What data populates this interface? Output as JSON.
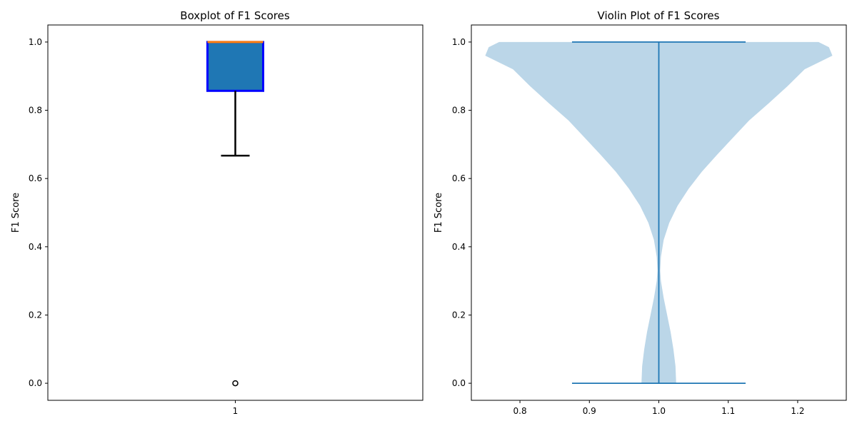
{
  "chart_data": [
    {
      "type": "boxplot",
      "title": "Boxplot of F1 Scores",
      "xlabel": "",
      "ylabel": "F1 Score",
      "categories": [
        "1"
      ],
      "ylim": [
        -0.05,
        1.05
      ],
      "yticks": [
        "0.0",
        "0.2",
        "0.4",
        "0.6",
        "0.8",
        "1.0"
      ],
      "stats": {
        "whisker_low": 0.667,
        "q1": 0.857,
        "median": 1.0,
        "q3": 1.0,
        "whisker_high": 1.0,
        "outliers": [
          0.0
        ]
      },
      "colors": {
        "box_fill": "#1f77b4",
        "box_edge": "#0000ff",
        "median": "#ff7f0e",
        "whisker": "#000000"
      }
    },
    {
      "type": "violin",
      "title": "Violin Plot of F1 Scores",
      "xlabel": "",
      "ylabel": "F1 Score",
      "position": 1.0,
      "xlim": [
        0.73,
        1.27
      ],
      "ylim": [
        -0.05,
        1.05
      ],
      "xticks": [
        "0.8",
        "0.9",
        "1.0",
        "1.1",
        "1.2"
      ],
      "yticks": [
        "0.0",
        "0.2",
        "0.4",
        "0.6",
        "0.8",
        "1.0"
      ],
      "min": 0.0,
      "max": 1.0,
      "density_profile": [
        {
          "y": 0.0,
          "w": 0.025
        },
        {
          "y": 0.05,
          "w": 0.024
        },
        {
          "y": 0.1,
          "w": 0.021
        },
        {
          "y": 0.15,
          "w": 0.017
        },
        {
          "y": 0.2,
          "w": 0.012
        },
        {
          "y": 0.25,
          "w": 0.007
        },
        {
          "y": 0.3,
          "w": 0.003
        },
        {
          "y": 0.33,
          "w": 0.002
        },
        {
          "y": 0.37,
          "w": 0.003
        },
        {
          "y": 0.42,
          "w": 0.007
        },
        {
          "y": 0.47,
          "w": 0.015
        },
        {
          "y": 0.52,
          "w": 0.027
        },
        {
          "y": 0.57,
          "w": 0.043
        },
        {
          "y": 0.62,
          "w": 0.062
        },
        {
          "y": 0.67,
          "w": 0.084
        },
        {
          "y": 0.72,
          "w": 0.107
        },
        {
          "y": 0.77,
          "w": 0.13
        },
        {
          "y": 0.82,
          "w": 0.158
        },
        {
          "y": 0.87,
          "w": 0.185
        },
        {
          "y": 0.92,
          "w": 0.21
        },
        {
          "y": 0.96,
          "w": 0.25
        },
        {
          "y": 0.985,
          "w": 0.245
        },
        {
          "y": 1.0,
          "w": 0.23
        }
      ],
      "colors": {
        "body": "#1f77b4",
        "body_alpha": 0.3,
        "lines": "#1f77b4"
      }
    }
  ]
}
